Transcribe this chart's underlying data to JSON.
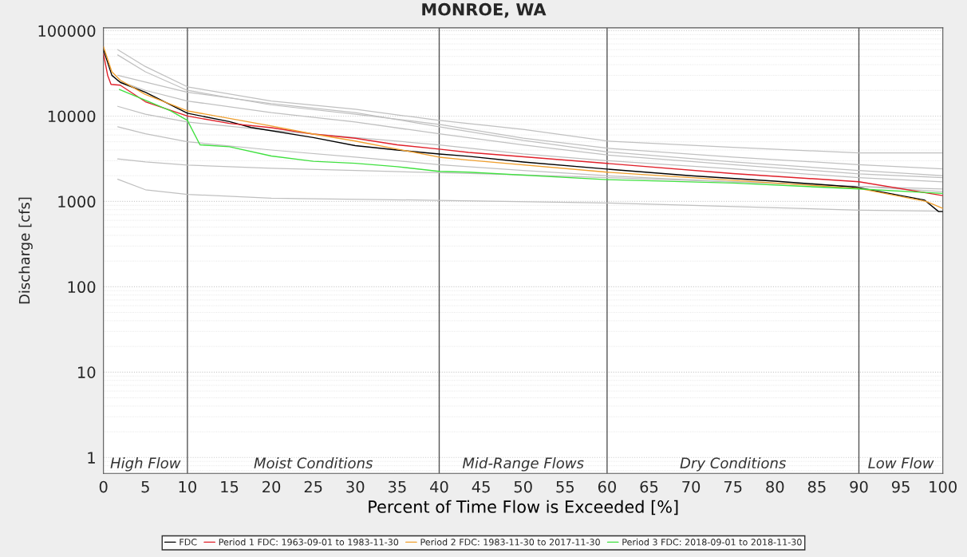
{
  "chart_data": {
    "type": "line",
    "title": "MONROE, WA",
    "xlabel": "Percent of Time Flow is Exceeded [%]",
    "ylabel": "Discharge [cfs]",
    "log": "y",
    "xlim": [
      0,
      100
    ],
    "ylim": [
      0.65,
      108000
    ],
    "xticks": [
      0,
      5,
      10,
      15,
      20,
      25,
      30,
      35,
      40,
      45,
      50,
      55,
      60,
      65,
      70,
      75,
      80,
      85,
      90,
      95,
      100
    ],
    "yticks": [
      1,
      10,
      100,
      1000,
      10000,
      100000
    ],
    "grid": "y",
    "legend": "bottom",
    "ref_lines": [
      {
        "axis": "x",
        "value": 10,
        "color": "#555555"
      },
      {
        "axis": "x",
        "value": 40,
        "color": "#555555"
      },
      {
        "axis": "x",
        "value": 60,
        "color": "#555555"
      },
      {
        "axis": "x",
        "value": 90,
        "color": "#555555"
      }
    ],
    "annotations": [
      "High Flow",
      "Moist Conditions",
      "Mid-Range Flows",
      "Dry Conditions",
      "Low Flow"
    ],
    "series": [
      {
        "color": "#c0c0c0",
        "x": [
          1.7,
          5,
          10,
          20,
          30,
          40,
          50,
          60,
          75,
          90,
          100
        ],
        "values": [
          60000,
          38000,
          22000,
          15000,
          12000,
          8900,
          7000,
          5100,
          4300,
          3700,
          3700
        ]
      },
      {
        "color": "#c0c0c0",
        "x": [
          1.7,
          5,
          10,
          20,
          30,
          40,
          50,
          60,
          75,
          90,
          100
        ],
        "values": [
          52000,
          33000,
          20000,
          13500,
          10500,
          8000,
          5500,
          4200,
          3300,
          2700,
          2400
        ]
      },
      {
        "color": "#c0c0c0",
        "x": [
          1.7,
          5,
          10,
          20,
          30,
          40,
          50,
          60,
          75,
          90,
          100
        ],
        "values": [
          30000,
          25000,
          19000,
          14000,
          11000,
          7500,
          5200,
          3800,
          2900,
          2300,
          2000
        ]
      },
      {
        "color": "#c0c0c0",
        "x": [
          1.7,
          5,
          10,
          20,
          30,
          40,
          50,
          60,
          75,
          90,
          100
        ],
        "values": [
          26000,
          20000,
          15000,
          11000,
          8500,
          6200,
          4600,
          3500,
          2700,
          2100,
          1900
        ]
      },
      {
        "color": "#c0c0c0",
        "x": [
          1.7,
          5,
          10,
          20,
          30,
          40,
          50,
          60,
          75,
          90,
          100
        ],
        "values": [
          13000,
          10500,
          8500,
          6800,
          5600,
          4600,
          3600,
          3000,
          2400,
          1900,
          1700
        ]
      },
      {
        "color": "#c0c0c0",
        "x": [
          1.7,
          5,
          10,
          20,
          30,
          40,
          50,
          60,
          75,
          90,
          100
        ],
        "values": [
          7500,
          6200,
          5000,
          4000,
          3300,
          2700,
          2300,
          2000,
          1700,
          1500,
          1400
        ]
      },
      {
        "color": "#c0c0c0",
        "x": [
          1.7,
          5,
          10,
          20,
          30,
          40,
          50,
          60,
          75,
          90,
          100
        ],
        "values": [
          3150,
          2900,
          2660,
          2450,
          2300,
          2170,
          2050,
          1900,
          1700,
          1500,
          1300
        ]
      },
      {
        "color": "#c0c0c0",
        "x": [
          1.7,
          5,
          10,
          20,
          40,
          60,
          90,
          100
        ],
        "values": [
          1820,
          1370,
          1210,
          1090,
          1030,
          960,
          790,
          770
        ]
      },
      {
        "name": "FDC",
        "color": "#000000",
        "x": [
          0,
          1,
          2,
          5,
          10,
          15,
          17.6,
          25,
          30,
          35,
          40,
          43.5,
          50,
          60,
          70,
          80,
          89.6,
          97.8,
          99.5,
          100
        ],
        "values": [
          60000,
          30000,
          24800,
          19000,
          10800,
          8600,
          7350,
          5600,
          4500,
          4000,
          3590,
          3380,
          2900,
          2390,
          2000,
          1730,
          1470,
          1040,
          760,
          760
        ]
      },
      {
        "name": "Period 1 FDC: 1963-09-01 to 1983-11-30",
        "color": "#e0202a",
        "x": [
          0,
          0.5,
          0.9,
          2,
          5,
          10,
          15,
          20,
          25,
          30,
          35,
          40,
          43.5,
          60,
          75,
          90,
          100
        ],
        "values": [
          53800,
          30000,
          23500,
          23000,
          14700,
          10000,
          8200,
          7300,
          6150,
          5500,
          4600,
          4100,
          3750,
          2790,
          2120,
          1700,
          1170
        ]
      },
      {
        "name": "Period 2 FDC: 1983-11-30 to 2017-11-30",
        "color": "#f0a030",
        "x": [
          0,
          1,
          2,
          5,
          10,
          15,
          20,
          25,
          30,
          35,
          40,
          43.5,
          60,
          90,
          98,
          100
        ],
        "values": [
          65000,
          33000,
          26300,
          17900,
          11500,
          9400,
          7650,
          6150,
          5100,
          4100,
          3300,
          3050,
          2200,
          1420,
          1000,
          830
        ]
      },
      {
        "name": "Period 3 FDC: 2018-09-01 to 2018-11-30",
        "color": "#40e040",
        "x": [
          1.9,
          5,
          8,
          10,
          11.5,
          15,
          20,
          25,
          30,
          35,
          40,
          43.5,
          60,
          75,
          90,
          100
        ],
        "values": [
          20500,
          15300,
          11500,
          8900,
          4600,
          4370,
          3400,
          2950,
          2800,
          2550,
          2250,
          2200,
          1800,
          1640,
          1400,
          1240
        ]
      }
    ]
  }
}
